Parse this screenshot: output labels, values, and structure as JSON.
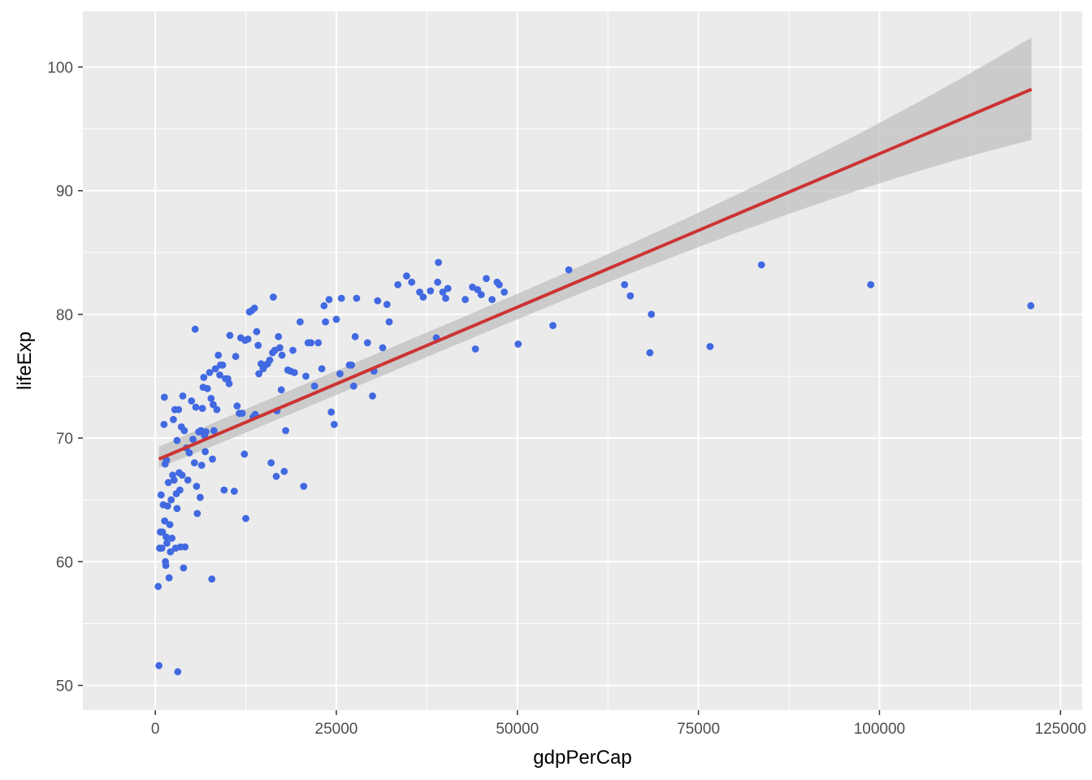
{
  "chart_data": {
    "type": "scatter",
    "xlabel": "gdpPerCap",
    "ylabel": "lifeExp",
    "xlim": [
      -10000,
      128000
    ],
    "ylim": [
      48,
      104.5
    ],
    "x_ticks": [
      0,
      25000,
      50000,
      75000,
      100000,
      125000
    ],
    "y_ticks": [
      50,
      60,
      70,
      80,
      90,
      100
    ],
    "grid": true,
    "legend": "none",
    "colors": {
      "panel": "#ebebeb",
      "grid": "#ffffff",
      "points": "#4169e1",
      "fit_line": "#cc3333",
      "ribbon": "#bdbdbd"
    },
    "trend": {
      "method": "linear",
      "x": [
        500,
        121000
      ],
      "y": [
        68.3,
        98.2
      ],
      "ci_lower": [
        67.6,
        94.1
      ],
      "ci_upper": [
        69.3,
        102.4
      ]
    },
    "points": [
      [
        400,
        58.0
      ],
      [
        500,
        51.6
      ],
      [
        600,
        61.1
      ],
      [
        700,
        62.4
      ],
      [
        800,
        65.4
      ],
      [
        900,
        61.1
      ],
      [
        1000,
        62.4
      ],
      [
        1100,
        64.6
      ],
      [
        1200,
        71.1
      ],
      [
        1250,
        73.3
      ],
      [
        1300,
        63.3
      ],
      [
        1350,
        67.9
      ],
      [
        1400,
        60.0
      ],
      [
        1450,
        59.7
      ],
      [
        1500,
        62.0
      ],
      [
        1550,
        68.2
      ],
      [
        1600,
        61.5
      ],
      [
        1700,
        64.5
      ],
      [
        1800,
        66.4
      ],
      [
        1900,
        58.7
      ],
      [
        2000,
        63.0
      ],
      [
        2100,
        60.8
      ],
      [
        2200,
        65.0
      ],
      [
        2300,
        61.9
      ],
      [
        2400,
        67.0
      ],
      [
        2500,
        71.5
      ],
      [
        2600,
        66.6
      ],
      [
        2700,
        72.3
      ],
      [
        2800,
        61.1
      ],
      [
        2900,
        65.5
      ],
      [
        3000,
        69.8
      ],
      [
        3000,
        64.3
      ],
      [
        3100,
        51.1
      ],
      [
        3200,
        72.3
      ],
      [
        3300,
        67.2
      ],
      [
        3400,
        65.8
      ],
      [
        3500,
        61.2
      ],
      [
        3600,
        70.9
      ],
      [
        3700,
        67.0
      ],
      [
        3800,
        73.4
      ],
      [
        3900,
        59.5
      ],
      [
        4000,
        70.6
      ],
      [
        4100,
        61.2
      ],
      [
        4300,
        69.2
      ],
      [
        4500,
        66.6
      ],
      [
        4700,
        68.8
      ],
      [
        5000,
        73.0
      ],
      [
        5200,
        69.9
      ],
      [
        5400,
        68.0
      ],
      [
        5500,
        78.8
      ],
      [
        5600,
        72.5
      ],
      [
        5700,
        66.1
      ],
      [
        5800,
        63.9
      ],
      [
        6000,
        70.5
      ],
      [
        6200,
        65.2
      ],
      [
        6300,
        70.6
      ],
      [
        6400,
        67.8
      ],
      [
        6500,
        72.4
      ],
      [
        6600,
        74.1
      ],
      [
        6700,
        74.9
      ],
      [
        6800,
        70.2
      ],
      [
        6900,
        68.9
      ],
      [
        7000,
        70.5
      ],
      [
        7200,
        74.0
      ],
      [
        7500,
        75.3
      ],
      [
        7700,
        73.2
      ],
      [
        7800,
        58.6
      ],
      [
        7900,
        68.3
      ],
      [
        8000,
        72.7
      ],
      [
        8100,
        70.6
      ],
      [
        8300,
        75.6
      ],
      [
        8500,
        72.3
      ],
      [
        8700,
        76.7
      ],
      [
        8900,
        75.1
      ],
      [
        9000,
        75.9
      ],
      [
        9300,
        75.9
      ],
      [
        9500,
        65.8
      ],
      [
        9700,
        74.8
      ],
      [
        10000,
        74.8
      ],
      [
        10200,
        74.4
      ],
      [
        10300,
        78.3
      ],
      [
        10900,
        65.7
      ],
      [
        11100,
        76.6
      ],
      [
        11300,
        72.6
      ],
      [
        11600,
        72.0
      ],
      [
        11800,
        78.1
      ],
      [
        12000,
        72.0
      ],
      [
        12300,
        68.7
      ],
      [
        12400,
        77.9
      ],
      [
        12500,
        63.5
      ],
      [
        12800,
        78.0
      ],
      [
        13000,
        80.2
      ],
      [
        13300,
        80.3
      ],
      [
        13500,
        71.7
      ],
      [
        13700,
        80.5
      ],
      [
        13800,
        71.9
      ],
      [
        14000,
        78.6
      ],
      [
        14200,
        77.5
      ],
      [
        14300,
        75.2
      ],
      [
        14600,
        76.0
      ],
      [
        14900,
        75.6
      ],
      [
        15200,
        75.9
      ],
      [
        15500,
        76.0
      ],
      [
        15800,
        76.3
      ],
      [
        16000,
        68.0
      ],
      [
        16200,
        76.9
      ],
      [
        16300,
        81.4
      ],
      [
        16500,
        77.1
      ],
      [
        16700,
        66.9
      ],
      [
        16800,
        72.2
      ],
      [
        17000,
        78.2
      ],
      [
        17200,
        77.3
      ],
      [
        17400,
        73.9
      ],
      [
        17500,
        76.7
      ],
      [
        17800,
        67.3
      ],
      [
        18000,
        70.6
      ],
      [
        18300,
        75.5
      ],
      [
        18700,
        75.4
      ],
      [
        19000,
        77.1
      ],
      [
        19200,
        75.3
      ],
      [
        20000,
        79.4
      ],
      [
        20500,
        66.1
      ],
      [
        20800,
        75.0
      ],
      [
        21100,
        77.7
      ],
      [
        21500,
        77.7
      ],
      [
        22000,
        74.2
      ],
      [
        22500,
        77.7
      ],
      [
        23000,
        75.6
      ],
      [
        23300,
        80.7
      ],
      [
        23500,
        79.4
      ],
      [
        24000,
        81.2
      ],
      [
        24300,
        72.1
      ],
      [
        24700,
        71.1
      ],
      [
        25000,
        79.6
      ],
      [
        25500,
        75.2
      ],
      [
        25700,
        81.3
      ],
      [
        26800,
        75.9
      ],
      [
        27100,
        75.9
      ],
      [
        27400,
        74.2
      ],
      [
        27600,
        78.2
      ],
      [
        27800,
        81.3
      ],
      [
        29300,
        77.7
      ],
      [
        30000,
        73.4
      ],
      [
        30200,
        75.4
      ],
      [
        30700,
        81.1
      ],
      [
        31400,
        77.3
      ],
      [
        32000,
        80.8
      ],
      [
        32300,
        79.4
      ],
      [
        33500,
        82.4
      ],
      [
        34700,
        83.1
      ],
      [
        35400,
        82.6
      ],
      [
        36500,
        81.8
      ],
      [
        37000,
        81.4
      ],
      [
        38000,
        81.9
      ],
      [
        38800,
        78.1
      ],
      [
        39000,
        82.6
      ],
      [
        39100,
        84.2
      ],
      [
        39700,
        81.8
      ],
      [
        40100,
        81.3
      ],
      [
        40400,
        82.1
      ],
      [
        42800,
        81.2
      ],
      [
        43800,
        82.2
      ],
      [
        44200,
        77.2
      ],
      [
        44500,
        82.0
      ],
      [
        45000,
        81.6
      ],
      [
        45700,
        82.9
      ],
      [
        46500,
        81.2
      ],
      [
        47200,
        82.6
      ],
      [
        47500,
        82.4
      ],
      [
        48200,
        81.8
      ],
      [
        50100,
        77.6
      ],
      [
        54900,
        79.1
      ],
      [
        57100,
        83.6
      ],
      [
        64800,
        82.4
      ],
      [
        65600,
        81.5
      ],
      [
        68300,
        76.9
      ],
      [
        68500,
        80.0
      ],
      [
        76600,
        77.4
      ],
      [
        83700,
        84.0
      ],
      [
        98800,
        82.4
      ],
      [
        120900,
        80.7
      ]
    ]
  }
}
